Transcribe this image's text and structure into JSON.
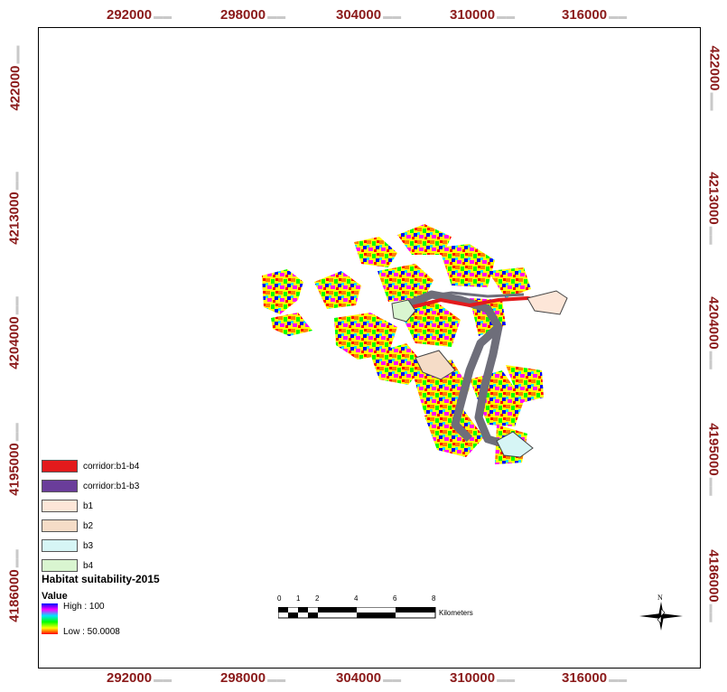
{
  "x_ticks": [
    "292000",
    "298000",
    "304000",
    "310000",
    "316000"
  ],
  "y_ticks": [
    "422000",
    "4213000",
    "4204000",
    "4195000",
    "4186000"
  ],
  "legend": {
    "items": [
      {
        "label": "corridor:b1-b4",
        "color": "#e31a1c"
      },
      {
        "label": "corridor:b1-b3",
        "color": "#6a3d9a"
      },
      {
        "label": "b1",
        "color": "#fde6d8"
      },
      {
        "label": "b2",
        "color": "#f5dcc7"
      },
      {
        "label": "b3",
        "color": "#d6f5f5"
      },
      {
        "label": "b4",
        "color": "#d9f5d0"
      }
    ],
    "title": "Habitat suitability-2015",
    "value_label": "Value",
    "high_label": "High : 100",
    "low_label": "Low : 50.0008"
  },
  "scalebar": {
    "ticks": [
      "0",
      "1",
      "2",
      "4",
      "6",
      "8"
    ],
    "unit": "Kilometers"
  },
  "north_label": "N",
  "colors": {
    "tick_text": "#8b1a1a",
    "corridor_b1_b4": "#e31a1c",
    "corridor_b1_b3": "#6a3d9a",
    "suitability_ramp": [
      "#0000ff",
      "#ff00ff",
      "#00e5ff",
      "#00ff00",
      "#ffff00",
      "#ff0000"
    ]
  }
}
